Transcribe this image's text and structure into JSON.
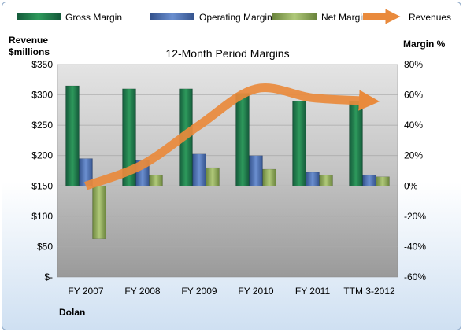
{
  "chart_data": {
    "type": "bar",
    "title": "12-Month Period Margins",
    "categories": [
      "FY 2007",
      "FY 2008",
      "FY 2009",
      "FY 2010",
      "FY 2011",
      "TTM 3-2012"
    ],
    "series": [
      {
        "name": "Gross Margin",
        "axis": "right",
        "kind": "bar",
        "color": "#1e7a45",
        "values": [
          66,
          64,
          64,
          61,
          56,
          56
        ]
      },
      {
        "name": "Operating Margin",
        "axis": "right",
        "kind": "bar",
        "color": "#4a6fb5",
        "values": [
          18,
          17,
          21,
          20,
          9,
          7
        ]
      },
      {
        "name": "Net Margin",
        "axis": "right",
        "kind": "bar",
        "color": "#8fac5a",
        "values": [
          -35,
          7,
          12,
          11,
          7,
          6
        ]
      },
      {
        "name": "Revenues",
        "axis": "left",
        "kind": "line",
        "color": "#e98a3c",
        "values": [
          150,
          185,
          250,
          310,
          295,
          290
        ]
      }
    ],
    "left_axis": {
      "label_line1": "Revenue",
      "label_line2": "$millions",
      "ylim": [
        0,
        350
      ],
      "ticks": [
        "$350",
        "$300",
        "$250",
        "$200",
        "$150",
        "$100",
        "$50",
        "$-"
      ]
    },
    "right_axis": {
      "label": "Margin %",
      "ylim": [
        -60,
        80
      ],
      "ticks": [
        "80%",
        "60%",
        "40%",
        "20%",
        "0%",
        "-20%",
        "-40%",
        "-60%"
      ]
    },
    "legend": {
      "placement": "top",
      "items": [
        "Gross Margin",
        "Operating Margin",
        "Net Margin",
        "Revenues"
      ]
    },
    "footer": "Dolan",
    "grid": true
  }
}
